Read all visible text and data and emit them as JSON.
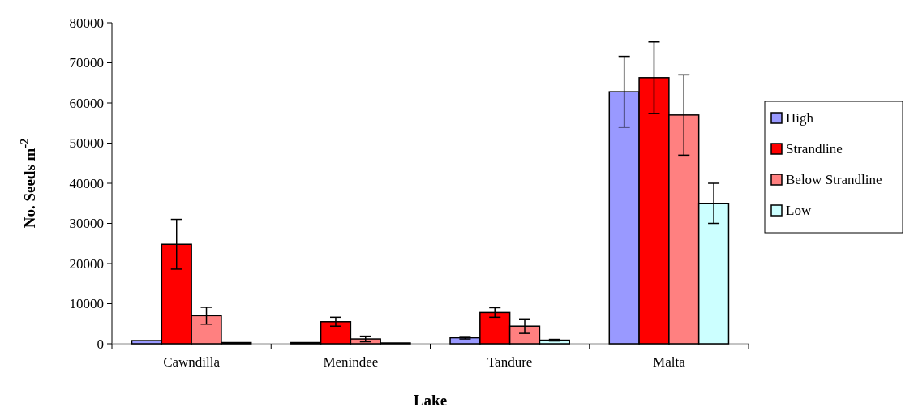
{
  "chart_data": {
    "type": "bar",
    "xlabel": "Lake",
    "ylabel": "No. Seeds m$^{-2}$",
    "categories": [
      "Cawndilla",
      "Menindee",
      "Tandure",
      "Malta"
    ],
    "series": [
      {
        "name": "High",
        "color": "#9999ff",
        "values": [
          800,
          300,
          1500,
          62800
        ],
        "errors": [
          null,
          null,
          300,
          8800
        ]
      },
      {
        "name": "Strandline",
        "color": "#ff0000",
        "values": [
          24800,
          5500,
          7800,
          66300
        ],
        "errors": [
          6200,
          1100,
          1200,
          8900
        ]
      },
      {
        "name": "Below Strandline",
        "color": "#ff8080",
        "values": [
          7000,
          1200,
          4400,
          57000
        ],
        "errors": [
          2100,
          700,
          1800,
          10000
        ]
      },
      {
        "name": "Low",
        "color": "#ccffff",
        "values": [
          300,
          200,
          900,
          35000
        ],
        "errors": [
          null,
          null,
          200,
          5000
        ]
      }
    ],
    "ylim": [
      0,
      80000
    ],
    "yticks": [
      0,
      10000,
      20000,
      30000,
      40000,
      50000,
      60000,
      70000,
      80000
    ],
    "legend": "right"
  }
}
